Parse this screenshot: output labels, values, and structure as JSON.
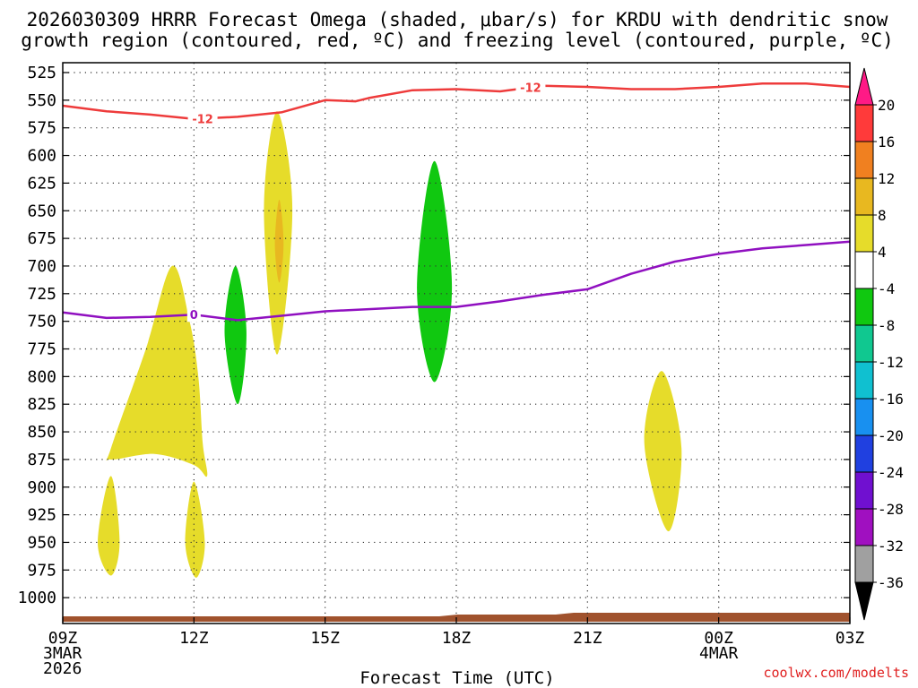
{
  "title_line1": "2026030309 HRRR Forecast Omega (shaded, μbar/s) for KRDU with dendritic snow",
  "title_line2": "growth region (contoured, red, ºC) and freezing level (contoured, purple, ºC)",
  "credit": "coolwx.com/modelts",
  "chart_data": {
    "type": "area",
    "title": "2026030309 HRRR Forecast Omega (shaded, μbar/s) for KRDU with dendritic snow growth region (contoured, red, ºC) and freezing level (contoured, purple, ºC)",
    "xlabel": "Forecast Time (UTC)",
    "ylabel": "",
    "y_axis": "pressure (hPa), inverted",
    "ylim": [
      1000,
      525
    ],
    "xlim": [
      0,
      18
    ],
    "x_unit": "hours after 09Z 3 MAR 2026",
    "y_ticks": [
      525,
      550,
      575,
      600,
      625,
      650,
      675,
      700,
      725,
      750,
      775,
      800,
      825,
      850,
      875,
      900,
      925,
      950,
      975,
      1000
    ],
    "x_ticks": [
      {
        "x": 0,
        "lines": [
          "09Z",
          "3MAR",
          "2026"
        ]
      },
      {
        "x": 3,
        "lines": [
          "12Z"
        ]
      },
      {
        "x": 6,
        "lines": [
          "15Z"
        ]
      },
      {
        "x": 9,
        "lines": [
          "18Z"
        ]
      },
      {
        "x": 12,
        "lines": [
          "21Z"
        ]
      },
      {
        "x": 15,
        "lines": [
          "00Z",
          "4MAR"
        ]
      },
      {
        "x": 18,
        "lines": [
          "03Z"
        ]
      }
    ],
    "grid": true,
    "colorbar": {
      "labels": [
        "20",
        "16",
        "12",
        "8",
        "4",
        "-4",
        "-8",
        "-12",
        "-16",
        "-20",
        "-24",
        "-28",
        "-32",
        "-36"
      ],
      "colors": [
        "#ff1a86",
        "#ff3a3a",
        "#f08020",
        "#e8b820",
        "#e6dc2a",
        "#ffffff",
        "#10c810",
        "#10c890",
        "#10c0d0",
        "#1890f0",
        "#2040e0",
        "#7010d0",
        "#a010c0",
        "#a0a0a0",
        "#000000"
      ]
    },
    "series": [
      {
        "name": "-12",
        "color": "#ee3b3b",
        "points": [
          [
            0,
            555
          ],
          [
            1,
            560
          ],
          [
            2,
            563
          ],
          [
            3,
            567
          ],
          [
            4,
            565
          ],
          [
            5,
            561
          ],
          [
            6,
            550
          ],
          [
            6.7,
            551
          ],
          [
            7,
            548
          ],
          [
            8,
            541
          ],
          [
            9,
            540
          ],
          [
            10,
            542
          ],
          [
            11,
            537
          ],
          [
            12,
            538
          ],
          [
            13,
            540
          ],
          [
            14,
            540
          ],
          [
            15,
            538
          ],
          [
            16,
            535
          ],
          [
            17,
            535
          ],
          [
            18,
            538
          ]
        ],
        "label_at": [
          3.2,
          10.7
        ]
      },
      {
        "name": "0",
        "color": "#9010c0",
        "points": [
          [
            0,
            742
          ],
          [
            1,
            747
          ],
          [
            2,
            746
          ],
          [
            3,
            744
          ],
          [
            4,
            749
          ],
          [
            5,
            745
          ],
          [
            6,
            741
          ],
          [
            7,
            739
          ],
          [
            8,
            737
          ],
          [
            9,
            737
          ],
          [
            10,
            732
          ],
          [
            11,
            726
          ],
          [
            12,
            721
          ],
          [
            13,
            707
          ],
          [
            14,
            696
          ],
          [
            15,
            689
          ],
          [
            16,
            684
          ],
          [
            17,
            681
          ],
          [
            18,
            678
          ]
        ],
        "label_at": [
          3.0
        ]
      }
    ],
    "omega_regions": [
      {
        "color": "#e6dc2a",
        "points": [
          [
            1.1,
            865
          ],
          [
            1.9,
            775
          ],
          [
            2.5,
            700
          ],
          [
            2.9,
            750
          ],
          [
            3.1,
            800
          ],
          [
            3.2,
            860
          ],
          [
            3.3,
            890
          ],
          [
            3.0,
            880
          ],
          [
            2.1,
            870
          ],
          [
            1.1,
            875
          ]
        ]
      },
      {
        "color": "#e6dc2a",
        "points": [
          [
            0.8,
            950
          ],
          [
            1.1,
            890
          ],
          [
            1.3,
            950
          ],
          [
            1.1,
            980
          ]
        ]
      },
      {
        "color": "#e6dc2a",
        "points": [
          [
            2.8,
            950
          ],
          [
            3.0,
            895
          ],
          [
            3.25,
            950
          ],
          [
            3.05,
            982
          ]
        ]
      },
      {
        "color": "#10c810",
        "points": [
          [
            3.7,
            760
          ],
          [
            3.95,
            700
          ],
          [
            4.2,
            760
          ],
          [
            4.0,
            825
          ]
        ]
      },
      {
        "color": "#e6dc2a",
        "points": [
          [
            4.6,
            650
          ],
          [
            4.9,
            560
          ],
          [
            5.25,
            650
          ],
          [
            4.9,
            780
          ]
        ]
      },
      {
        "color": "#e8b820",
        "points": [
          [
            4.85,
            680
          ],
          [
            4.95,
            640
          ],
          [
            5.05,
            680
          ],
          [
            4.95,
            715
          ]
        ]
      },
      {
        "color": "#10c810",
        "points": [
          [
            8.1,
            720
          ],
          [
            8.5,
            605
          ],
          [
            8.9,
            720
          ],
          [
            8.5,
            805
          ]
        ]
      },
      {
        "color": "#e6dc2a",
        "points": [
          [
            13.3,
            860
          ],
          [
            13.7,
            795
          ],
          [
            14.15,
            865
          ],
          [
            13.85,
            940
          ]
        ]
      }
    ]
  }
}
